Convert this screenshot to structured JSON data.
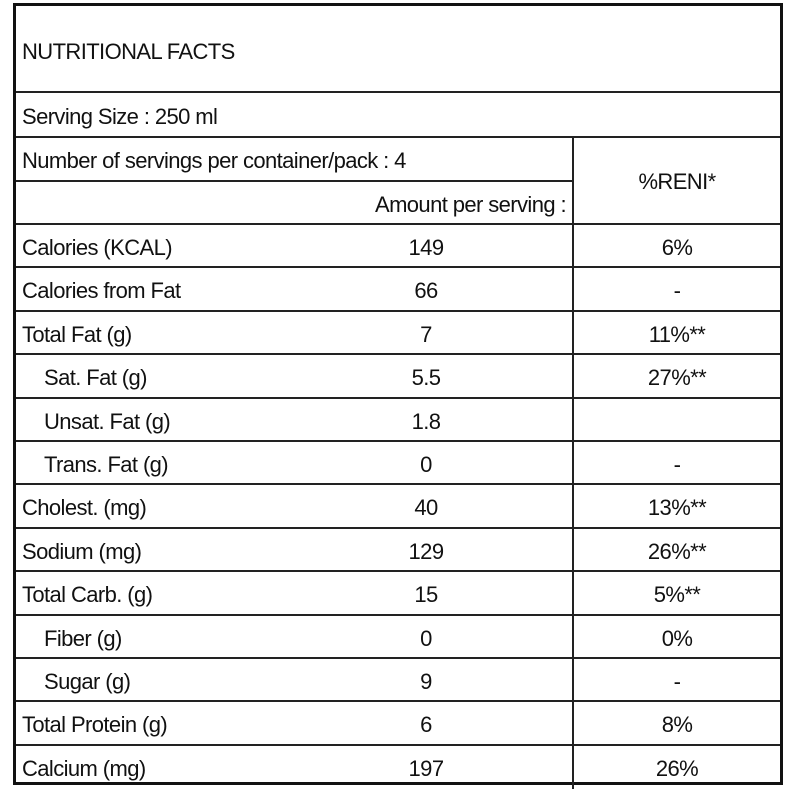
{
  "title": "NUTRITIONAL FACTS",
  "serving_size": "Serving Size : 250 ml",
  "servings_per_container": "Number of servings per container/pack : 4",
  "amount_header": "Amount per serving :",
  "reni_header": "%RENI*",
  "rows": [
    {
      "label": "Calories (KCAL)",
      "amount": "149",
      "reni": "6%",
      "indent": false
    },
    {
      "label": "Calories from Fat",
      "amount": "66",
      "reni": "-",
      "indent": false
    },
    {
      "label": "Total Fat (g)",
      "amount": "7",
      "reni": "11%**",
      "indent": false
    },
    {
      "label": "Sat. Fat (g)",
      "amount": "5.5",
      "reni": "27%**",
      "indent": true
    },
    {
      "label": "Unsat. Fat (g)",
      "amount": "1.8",
      "reni": "",
      "indent": true
    },
    {
      "label": "Trans. Fat (g)",
      "amount": "0",
      "reni": "-",
      "indent": true
    },
    {
      "label": "Cholest. (mg)",
      "amount": "40",
      "reni": "13%**",
      "indent": false
    },
    {
      "label": "Sodium (mg)",
      "amount": "129",
      "reni": "26%**",
      "indent": false
    },
    {
      "label": "Total Carb. (g)",
      "amount": "15",
      "reni": "5%**",
      "indent": false
    },
    {
      "label": "Fiber (g)",
      "amount": "0",
      "reni": "0%",
      "indent": true
    },
    {
      "label": "Sugar (g)",
      "amount": "9",
      "reni": "-",
      "indent": true
    },
    {
      "label": "Total Protein (g)",
      "amount": "6",
      "reni": "8%",
      "indent": false
    },
    {
      "label": "Calcium (mg)",
      "amount": "197",
      "reni": "26%",
      "indent": false
    }
  ]
}
